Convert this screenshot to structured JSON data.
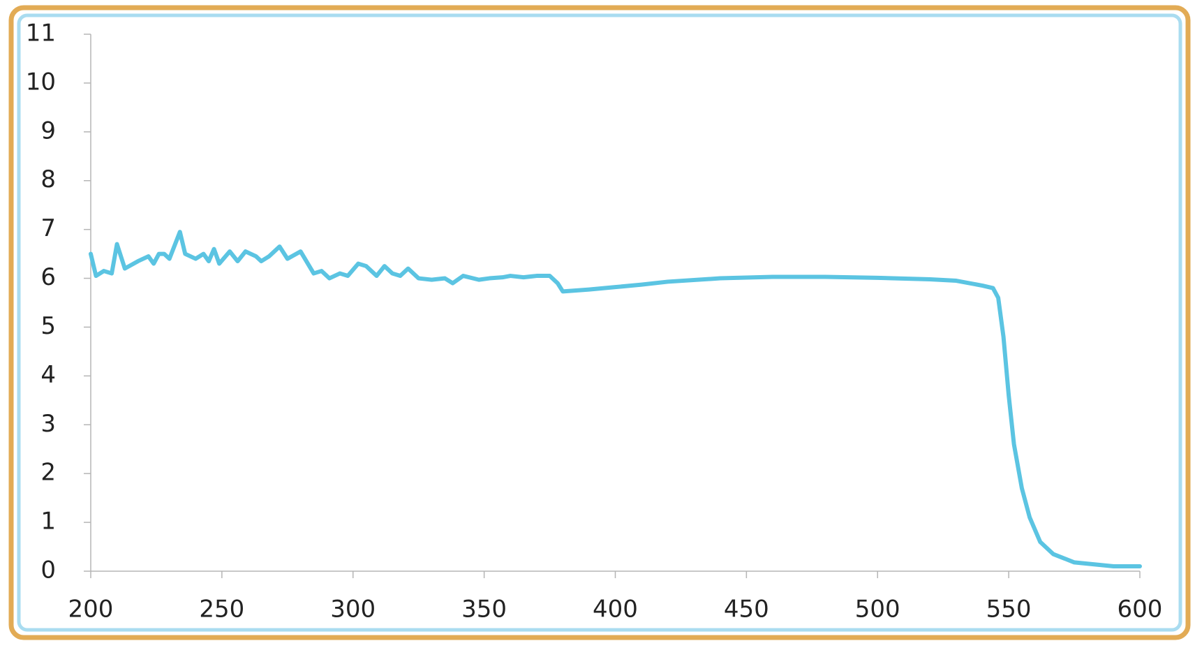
{
  "chart_data": {
    "type": "line",
    "x": [
      200,
      202,
      205,
      208,
      210,
      213,
      218,
      222,
      224,
      226,
      228,
      230,
      234,
      236,
      240,
      243,
      245,
      247,
      249,
      253,
      256,
      259,
      263,
      265,
      268,
      272,
      275,
      280,
      285,
      288,
      291,
      295,
      298,
      302,
      305,
      309,
      312,
      315,
      318,
      321,
      325,
      330,
      335,
      338,
      342,
      348,
      352,
      357,
      360,
      365,
      370,
      375,
      378,
      380,
      390,
      400,
      410,
      420,
      440,
      460,
      480,
      500,
      520,
      530,
      540,
      544,
      546,
      548,
      550,
      552,
      555,
      558,
      562,
      567,
      575,
      590,
      600
    ],
    "series": [
      {
        "name": null,
        "color": "#5bc4e2",
        "values": [
          6.5,
          6.05,
          6.15,
          6.1,
          6.7,
          6.2,
          6.35,
          6.45,
          6.3,
          6.5,
          6.5,
          6.4,
          6.95,
          6.5,
          6.4,
          6.5,
          6.35,
          6.6,
          6.3,
          6.55,
          6.35,
          6.55,
          6.45,
          6.35,
          6.45,
          6.65,
          6.4,
          6.55,
          6.1,
          6.15,
          6.0,
          6.1,
          6.05,
          6.3,
          6.25,
          6.05,
          6.25,
          6.1,
          6.05,
          6.2,
          6.0,
          5.97,
          6.0,
          5.9,
          6.05,
          5.97,
          6.0,
          6.02,
          6.05,
          6.02,
          6.05,
          6.05,
          5.9,
          5.73,
          5.77,
          5.82,
          5.87,
          5.93,
          6.0,
          6.03,
          6.03,
          6.01,
          5.98,
          5.95,
          5.85,
          5.8,
          5.6,
          4.8,
          3.6,
          2.6,
          1.7,
          1.1,
          0.6,
          0.35,
          0.18,
          0.1,
          0.1
        ]
      }
    ],
    "xlim": [
      200,
      600
    ],
    "xticks": [
      200,
      250,
      300,
      350,
      400,
      450,
      500,
      550,
      600
    ],
    "ylim": [
      0,
      11
    ],
    "yticks": [
      0,
      1,
      2,
      3,
      4,
      5,
      6,
      7,
      8,
      9,
      10,
      11
    ],
    "grid": false
  }
}
